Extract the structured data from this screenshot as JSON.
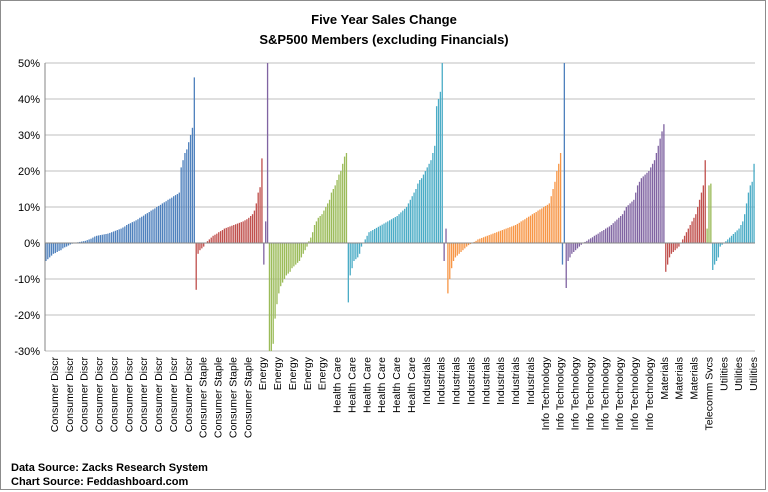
{
  "chart_data": {
    "type": "bar",
    "title": "Five Year Sales Change",
    "subtitle": "S&P500 Members  (excluding Financials)",
    "ylim": [
      -30,
      50
    ],
    "yticks": [
      -30,
      -20,
      -10,
      0,
      10,
      20,
      30,
      40,
      50
    ],
    "ytick_labels": [
      "-30%",
      "-20%",
      "-10%",
      "0%",
      "10%",
      "20%",
      "30%",
      "40%",
      "50%"
    ],
    "grid": true,
    "legend": "none",
    "category_labels": [
      "Consumer Discr",
      "Consumer Discr",
      "Consumer Discr",
      "Consumer Discr",
      "Consumer Discr",
      "Consumer Discr",
      "Consumer Discr",
      "Consumer Discr",
      "Consumer Discr",
      "Consumer Discr",
      "Consumer Staple",
      "Consumer Staple",
      "Consumer Staple",
      "Consumer Staple",
      "Energy",
      "Energy",
      "Energy",
      "Energy",
      "Energy",
      "Health Care",
      "Health Care",
      "Health Care",
      "Health Care",
      "Health Care",
      "Health Care",
      "Industrials",
      "Industrials",
      "Industrials",
      "Industrials",
      "Industrials",
      "Industrials",
      "Industrials",
      "Industrials",
      "Info Technology",
      "Info Technology",
      "Info Technology",
      "Info Technology",
      "Info Technology",
      "Info Technology",
      "Info Technology",
      "Info Technology",
      "Materials",
      "Materials",
      "Materials",
      "Telecomm Svcs",
      "Utilities",
      "Utilities",
      "Utilities"
    ],
    "sectors": [
      {
        "name": "Consumer Discr",
        "color": "#4f81bd",
        "values": [
          -5,
          -4.5,
          -4,
          -3.5,
          -3,
          -2.8,
          -2.5,
          -2.2,
          -2,
          -1.5,
          -1.2,
          -1,
          -0.7,
          -0.4,
          -0.2,
          0,
          0.1,
          0.2,
          0.3,
          0.4,
          0.5,
          0.6,
          0.8,
          1,
          1.2,
          1.5,
          1.8,
          2,
          2.1,
          2.2,
          2.3,
          2.4,
          2.5,
          2.6,
          2.8,
          3,
          3.2,
          3.4,
          3.6,
          3.8,
          4,
          4.3,
          4.6,
          5,
          5.3,
          5.5,
          5.8,
          6,
          6.3,
          6.6,
          7,
          7.3,
          7.6,
          8,
          8.3,
          8.6,
          9,
          9.3,
          9.6,
          10,
          10.3,
          10.6,
          11,
          11.3,
          11.6,
          12,
          12.3,
          12.6,
          13,
          13.3,
          13.6,
          14,
          21,
          23,
          25,
          26,
          28,
          30,
          32,
          46
        ]
      },
      {
        "name": "Consumer Staple",
        "color": "#c0504d",
        "values": [
          -13,
          -3,
          -2,
          -1.5,
          -1,
          0,
          0.5,
          1,
          1.5,
          2,
          2.3,
          2.6,
          3,
          3.3,
          3.6,
          4,
          4.2,
          4.4,
          4.6,
          4.8,
          5,
          5.2,
          5.4,
          5.6,
          5.8,
          6,
          6.3,
          6.6,
          7,
          7.5,
          8,
          9,
          11,
          14,
          15.5,
          23.5
        ]
      },
      {
        "name": "Energy",
        "color": "#9bbb59",
        "values": [
          -30,
          -30,
          -28,
          -21,
          -17,
          -14,
          -12,
          -11,
          -10,
          -9,
          -8.5,
          -8,
          -7,
          -6.5,
          -6,
          -5.5,
          -5,
          -4,
          -3,
          -2,
          -1,
          0.5,
          1.5,
          3,
          5,
          6,
          7,
          7.5,
          8,
          9,
          10,
          11,
          12,
          14,
          15,
          16,
          17.5,
          19,
          20,
          22,
          24,
          25
        ]
      },
      {
        "name": "Health Care",
        "color": "#4bacc6",
        "values": [
          -16.5,
          -9,
          -7,
          -5,
          -4.5,
          -4,
          -3,
          -1,
          0,
          1,
          2,
          3,
          3.3,
          3.6,
          3.9,
          4.2,
          4.5,
          4.8,
          5.1,
          5.4,
          5.7,
          6,
          6.3,
          6.6,
          6.9,
          7.2,
          7.5,
          8,
          8.5,
          9,
          9.5,
          10,
          11,
          12,
          13,
          14,
          15,
          16.5,
          17.5,
          18,
          19,
          20,
          21,
          22,
          23,
          25,
          27,
          38,
          40,
          42,
          50
        ]
      },
      {
        "name": "Industrials",
        "color": "#f79646",
        "values": [
          -14,
          -10,
          -7,
          -5,
          -4,
          -3.5,
          -3,
          -2.5,
          -2,
          -1.5,
          -1,
          -0.6,
          -0.3,
          0,
          0.3,
          0.6,
          1,
          1.2,
          1.4,
          1.6,
          1.8,
          2,
          2.2,
          2.4,
          2.6,
          2.8,
          3,
          3.2,
          3.4,
          3.6,
          3.8,
          4,
          4.2,
          4.4,
          4.6,
          4.8,
          5,
          5.3,
          5.6,
          6,
          6.3,
          6.6,
          7,
          7.3,
          7.6,
          8,
          8.3,
          8.6,
          9,
          9.3,
          9.6,
          10,
          10.3,
          10.6,
          11,
          13,
          15,
          17,
          20,
          22,
          25
        ]
      },
      {
        "name": "Info Technology",
        "color": "#8064a2",
        "values": [
          -12.5,
          -5,
          -4,
          -3,
          -2.5,
          -2,
          -1.5,
          -1,
          -0.5,
          0,
          0.3,
          0.6,
          1,
          1.3,
          1.6,
          2,
          2.3,
          2.6,
          3,
          3.3,
          3.6,
          4,
          4.3,
          4.6,
          5,
          5.5,
          6,
          6.5,
          7,
          7.5,
          8,
          9,
          10,
          10.5,
          11,
          11.5,
          12,
          14,
          16,
          17,
          18,
          18.5,
          19,
          19.5,
          20,
          21,
          22,
          23,
          25,
          27,
          29,
          31,
          33
        ]
      },
      {
        "name": "Materials",
        "color": "#c0504d",
        "values": [
          -8,
          -6,
          -4,
          -3,
          -2.5,
          -2,
          -1.5,
          -1,
          0,
          1,
          2,
          3,
          4,
          5,
          6,
          7,
          8,
          10,
          12,
          14,
          16,
          23
        ]
      },
      {
        "name": "Telecomm Svcs",
        "color": "#9bbb59",
        "values": [
          4,
          16,
          16.5
        ]
      },
      {
        "name": "Utilities",
        "color": "#4bacc6",
        "values": [
          -7.5,
          -6,
          -5,
          -4,
          -1,
          -0.5,
          0,
          0.5,
          1,
          1.5,
          2,
          2.5,
          3,
          3.5,
          4,
          5,
          6,
          8,
          11,
          14,
          16,
          17,
          22
        ]
      }
    ],
    "extra_marks": [
      {
        "color": "#8064a2",
        "values": [
          -6,
          6,
          50
        ]
      },
      {
        "color": "#8064a2",
        "values": [
          -5,
          4
        ]
      },
      {
        "color": "#4f81bd",
        "values": [
          -6,
          50
        ]
      }
    ]
  },
  "notes": {
    "data_source": "Data Source: Zacks Research System",
    "chart_source": "Chart Source: Feddashboard.com"
  }
}
